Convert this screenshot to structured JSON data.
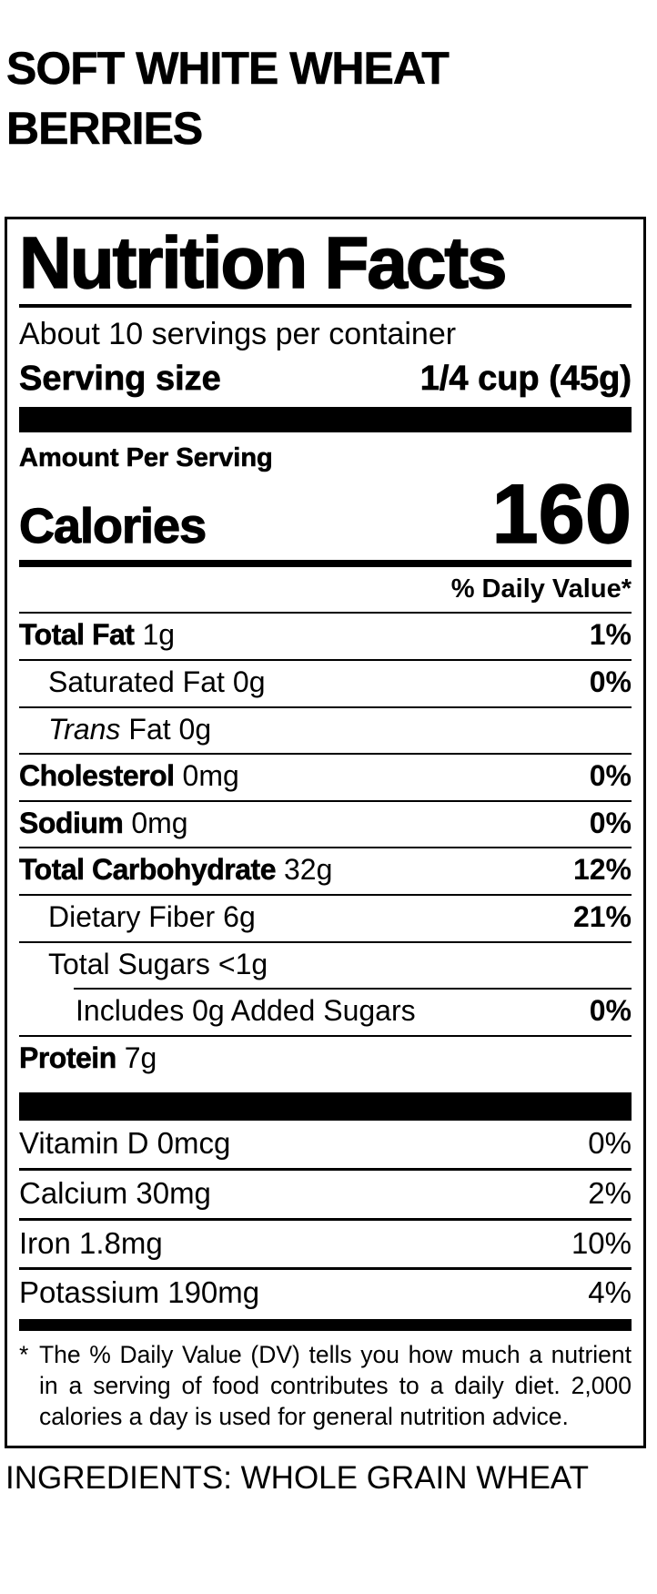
{
  "product": {
    "title_line1": "SOFT WHITE WHEAT",
    "title_line2": "BERRIES",
    "ingredients": "INGREDIENTS: WHOLE GRAIN WHEAT"
  },
  "label": {
    "heading": "Nutrition Facts",
    "servings_per_container": "About 10 servings per container",
    "serving_size": {
      "label": "Serving size",
      "value": "1/4 cup (45g)"
    },
    "amount_per_serving": "Amount Per Serving",
    "calories": {
      "label": "Calories",
      "value": "160"
    },
    "daily_value_header": "% Daily Value*",
    "nutrients": [
      {
        "name": "Total Fat",
        "amount": "1g",
        "dv": "1%"
      },
      {
        "name": "Saturated Fat",
        "amount": "0g",
        "dv": "0%"
      },
      {
        "name": "Trans",
        "amount": "Fat 0g",
        "dv": ""
      },
      {
        "name": "Cholesterol",
        "amount": "0mg",
        "dv": "0%"
      },
      {
        "name": "Sodium",
        "amount": "0mg",
        "dv": "0%"
      },
      {
        "name": "Total Carbohydrate",
        "amount": "32g",
        "dv": "12%"
      },
      {
        "name": "Dietary Fiber",
        "amount": "6g",
        "dv": "21%"
      },
      {
        "name": "Total Sugars",
        "amount": "<1g",
        "dv": ""
      },
      {
        "name": "Includes 0g Added Sugars",
        "amount": "",
        "dv": "0%"
      },
      {
        "name": "Protein",
        "amount": "7g",
        "dv": ""
      }
    ],
    "vitamins": [
      {
        "name": "Vitamin D 0mcg",
        "dv": "0%"
      },
      {
        "name": "Calcium 30mg",
        "dv": "2%"
      },
      {
        "name": "Iron 1.8mg",
        "dv": "10%"
      },
      {
        "name": "Potassium 190mg",
        "dv": "4%"
      }
    ],
    "footnote_marker": "*",
    "footnote": "The % Daily Value (DV) tells you how much a nutrient in a serving of food contributes to a daily diet. 2,000 calories a day is used for general nutrition advice."
  },
  "colors": {
    "text": "#000000",
    "background": "#ffffff"
  }
}
